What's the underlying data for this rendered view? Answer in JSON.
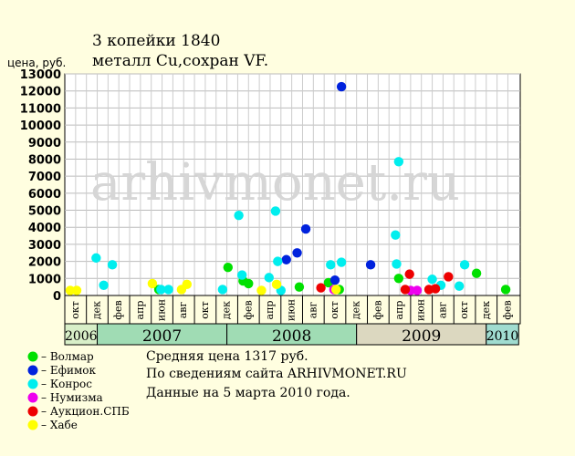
{
  "header": {
    "title_line1": "3 копейки 1840",
    "title_line2": "металл Cu,сохран VF.",
    "y_axis_label": "цена, руб."
  },
  "watermark": "arhivmonet.ru",
  "info": {
    "avg_price": "Средняя цена 1317 руб.",
    "source": "По сведениям сайта ARHIVMONET.RU",
    "date": "Данные на 5 марта 2010 года."
  },
  "chart_data": {
    "type": "scatter",
    "ylim": [
      0,
      13000
    ],
    "yticks": [
      0,
      1000,
      2000,
      3000,
      4000,
      5000,
      6000,
      7000,
      8000,
      9000,
      10000,
      11000,
      12000,
      13000
    ],
    "grid": true,
    "month_labels": [
      "окт",
      "дек",
      "фев",
      "апр",
      "июн",
      "авг",
      "окт",
      "дек",
      "фев",
      "апр",
      "июн",
      "авг",
      "окт",
      "дек",
      "фев",
      "апр",
      "июн",
      "авг",
      "окт",
      "дек",
      "фев"
    ],
    "years": [
      {
        "label": "2006",
        "color": "#d8efc8"
      },
      {
        "label": "2007",
        "color": "#a0dcb4"
      },
      {
        "label": "2008",
        "color": "#a0dcb4"
      },
      {
        "label": "2009",
        "color": "#dcd8c0"
      },
      {
        "label": "2010",
        "color": "#a0dcd0"
      }
    ],
    "series": [
      {
        "name": "Волмар",
        "color": "#00e000",
        "points": [
          {
            "x": 8.7,
            "y": 350
          },
          {
            "x": 15.1,
            "y": 1650
          },
          {
            "x": 16.5,
            "y": 850
          },
          {
            "x": 17.0,
            "y": 700
          },
          {
            "x": 21.7,
            "y": 500
          },
          {
            "x": 24.4,
            "y": 750
          },
          {
            "x": 25.4,
            "y": 350
          },
          {
            "x": 30.9,
            "y": 1000
          },
          {
            "x": 38.1,
            "y": 1300
          },
          {
            "x": 40.8,
            "y": 350
          }
        ]
      },
      {
        "name": "Ефимок",
        "color": "#0022dd",
        "points": [
          {
            "x": 20.5,
            "y": 2100
          },
          {
            "x": 21.5,
            "y": 2500
          },
          {
            "x": 22.3,
            "y": 3900
          },
          {
            "x": 25.0,
            "y": 900
          },
          {
            "x": 25.6,
            "y": 12250
          },
          {
            "x": 28.3,
            "y": 1800
          }
        ]
      },
      {
        "name": "Конрос",
        "color": "#00eeee",
        "points": [
          {
            "x": 2.9,
            "y": 2200
          },
          {
            "x": 3.6,
            "y": 600
          },
          {
            "x": 4.4,
            "y": 1800
          },
          {
            "x": 8.9,
            "y": 350
          },
          {
            "x": 9.6,
            "y": 350
          },
          {
            "x": 14.6,
            "y": 350
          },
          {
            "x": 16.1,
            "y": 4700
          },
          {
            "x": 16.4,
            "y": 1200
          },
          {
            "x": 18.9,
            "y": 1050
          },
          {
            "x": 19.5,
            "y": 4950
          },
          {
            "x": 19.7,
            "y": 2000
          },
          {
            "x": 20.0,
            "y": 300
          },
          {
            "x": 24.6,
            "y": 1800
          },
          {
            "x": 25.6,
            "y": 1950
          },
          {
            "x": 30.6,
            "y": 3550
          },
          {
            "x": 30.7,
            "y": 1850
          },
          {
            "x": 30.9,
            "y": 7850
          },
          {
            "x": 34.0,
            "y": 950
          },
          {
            "x": 34.8,
            "y": 600
          },
          {
            "x": 36.5,
            "y": 550
          },
          {
            "x": 37.0,
            "y": 1800
          }
        ]
      },
      {
        "name": "Нумизма",
        "color": "#ee00ee",
        "points": [
          {
            "x": 24.9,
            "y": 350
          },
          {
            "x": 32.0,
            "y": 300
          },
          {
            "x": 32.6,
            "y": 300
          }
        ]
      },
      {
        "name": "Аукцион.СПБ",
        "color": "#ee0000",
        "points": [
          {
            "x": 23.7,
            "y": 450
          },
          {
            "x": 31.5,
            "y": 350
          },
          {
            "x": 31.9,
            "y": 1250
          },
          {
            "x": 33.7,
            "y": 350
          },
          {
            "x": 34.3,
            "y": 400
          },
          {
            "x": 35.5,
            "y": 1100
          }
        ]
      },
      {
        "name": "Хабе",
        "color": "#ffff00",
        "points": [
          {
            "x": 0.5,
            "y": 300
          },
          {
            "x": 1.1,
            "y": 300
          },
          {
            "x": 8.1,
            "y": 700
          },
          {
            "x": 10.8,
            "y": 350
          },
          {
            "x": 11.3,
            "y": 650
          },
          {
            "x": 18.2,
            "y": 300
          },
          {
            "x": 19.6,
            "y": 650
          },
          {
            "x": 25.1,
            "y": 350
          }
        ]
      }
    ]
  }
}
